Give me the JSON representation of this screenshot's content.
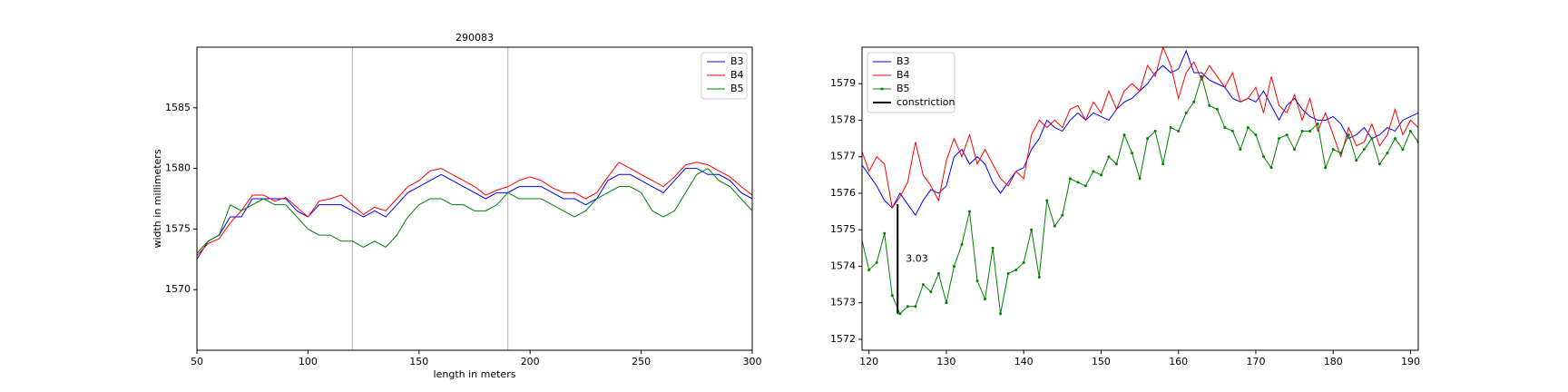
{
  "chart_data": [
    {
      "type": "line",
      "title": "290083",
      "xlabel": "length in meters",
      "ylabel": "width in millimeters",
      "xlim": [
        50,
        300
      ],
      "xticks": [
        50,
        100,
        150,
        200,
        250,
        300
      ],
      "ylim": [
        1565,
        1590
      ],
      "yticks": [
        1570,
        1575,
        1580,
        1585
      ],
      "legend": "upper right",
      "vlines": [
        120,
        190
      ],
      "vline_color": "#b0b0b0",
      "x": [
        50,
        55,
        60,
        65,
        70,
        75,
        80,
        85,
        90,
        95,
        100,
        105,
        110,
        115,
        120,
        125,
        130,
        135,
        140,
        145,
        150,
        155,
        160,
        165,
        170,
        175,
        180,
        185,
        190,
        195,
        200,
        205,
        210,
        215,
        220,
        225,
        230,
        235,
        240,
        245,
        250,
        255,
        260,
        265,
        270,
        275,
        280,
        285,
        290,
        295,
        300
      ],
      "series": [
        {
          "name": "B3",
          "color": "#0000ff",
          "values": [
            1572.5,
            1574,
            1574.5,
            1576,
            1576,
            1577.5,
            1577.5,
            1577.5,
            1577.5,
            1576.5,
            1576,
            1577,
            1577,
            1577,
            1576.5,
            1576,
            1576.5,
            1576,
            1577,
            1578,
            1578.5,
            1579,
            1579.5,
            1579,
            1578.5,
            1578,
            1577.5,
            1578,
            1578,
            1578.5,
            1578.5,
            1578.5,
            1578,
            1577.5,
            1577.5,
            1577,
            1577.5,
            1579,
            1579.5,
            1579.5,
            1579,
            1578.5,
            1578,
            1579,
            1580,
            1580,
            1579.5,
            1579.5,
            1579,
            1578,
            1577.5
          ]
        },
        {
          "name": "B4",
          "color": "#ff0000",
          "values": [
            1572.8,
            1573.8,
            1574.2,
            1575.5,
            1576.5,
            1577.8,
            1577.8,
            1577.3,
            1577.6,
            1576.8,
            1576,
            1577.3,
            1577.5,
            1577.8,
            1577,
            1576.2,
            1576.8,
            1576.5,
            1577.5,
            1578.5,
            1579,
            1579.8,
            1580,
            1579.5,
            1579,
            1578.5,
            1577.8,
            1578.2,
            1578.5,
            1579,
            1579.3,
            1579,
            1578.4,
            1578,
            1578,
            1577.5,
            1578,
            1579.3,
            1580.5,
            1580,
            1579.5,
            1579,
            1578.5,
            1579.3,
            1580.3,
            1580.5,
            1580.3,
            1579.8,
            1579.3,
            1578.5,
            1577.8
          ]
        },
        {
          "name": "B5",
          "color": "#008000",
          "values": [
            1573,
            1574,
            1574.5,
            1577,
            1576.5,
            1577,
            1577.5,
            1577,
            1577,
            1576,
            1575,
            1574.5,
            1574.5,
            1574,
            1574,
            1573.5,
            1574,
            1573.5,
            1574.5,
            1576,
            1577,
            1577.5,
            1577.5,
            1577,
            1577,
            1576.5,
            1576.5,
            1577,
            1578,
            1577.5,
            1577.5,
            1577.5,
            1577,
            1576.5,
            1576,
            1576.5,
            1577.5,
            1578,
            1578.5,
            1578.5,
            1578,
            1576.5,
            1576,
            1576.5,
            1578,
            1579.5,
            1580,
            1579,
            1578.5,
            1577.5,
            1576.5
          ]
        }
      ]
    },
    {
      "type": "line",
      "xlim": [
        119.1,
        191.0
      ],
      "xticks": [
        120,
        130,
        140,
        150,
        160,
        170,
        180,
        190
      ],
      "ylim": [
        1571.7,
        1580.0
      ],
      "yticks": [
        1572,
        1573,
        1574,
        1575,
        1576,
        1577,
        1578,
        1579
      ],
      "legend": "upper left",
      "x": [
        119,
        120,
        121,
        122,
        123,
        124,
        125,
        126,
        127,
        128,
        129,
        130,
        131,
        132,
        133,
        134,
        135,
        136,
        137,
        138,
        139,
        140,
        141,
        142,
        143,
        144,
        145,
        146,
        147,
        148,
        149,
        150,
        151,
        152,
        153,
        154,
        155,
        156,
        157,
        158,
        159,
        160,
        161,
        162,
        163,
        164,
        165,
        166,
        167,
        168,
        169,
        170,
        171,
        172,
        173,
        174,
        175,
        176,
        177,
        178,
        179,
        180,
        181,
        182,
        183,
        184,
        185,
        186,
        187,
        188,
        189,
        190,
        191
      ],
      "series": [
        {
          "name": "B3",
          "color": "#0000ff",
          "values": [
            1576.8,
            1576.5,
            1576.2,
            1575.8,
            1575.6,
            1576,
            1575.7,
            1575.4,
            1575.8,
            1576.1,
            1576,
            1576.2,
            1577,
            1577.2,
            1576.8,
            1577,
            1576.8,
            1576.3,
            1576,
            1576.3,
            1576.6,
            1576.7,
            1577.2,
            1577.5,
            1578,
            1577.8,
            1577.7,
            1578,
            1578.2,
            1578,
            1578.2,
            1578.1,
            1578,
            1578.3,
            1578.5,
            1578.6,
            1578.8,
            1579,
            1579.3,
            1579.5,
            1579.3,
            1579.4,
            1579.9,
            1579.3,
            1579.3,
            1579.1,
            1579,
            1578.9,
            1578.6,
            1578.5,
            1578.6,
            1578.5,
            1578.8,
            1578.4,
            1578,
            1578.4,
            1578.6,
            1578.3,
            1578.1,
            1578,
            1578,
            1578.1,
            1577.9,
            1577.5,
            1577.6,
            1577.8,
            1577.5,
            1577.6,
            1577.8,
            1577.7,
            1578,
            1578.1,
            1578.2
          ]
        },
        {
          "name": "B4",
          "color": "#ff0000",
          "values": [
            1577.2,
            1576.6,
            1577,
            1576.8,
            1575.6,
            1575.9,
            1576.3,
            1577.4,
            1576.5,
            1576.2,
            1575.8,
            1576.9,
            1577.5,
            1577,
            1577.6,
            1576.8,
            1577.2,
            1576.8,
            1576.4,
            1576.2,
            1576.6,
            1576.4,
            1577.6,
            1578,
            1577.8,
            1578,
            1577.8,
            1578.3,
            1578.4,
            1578,
            1578.5,
            1578.2,
            1578.8,
            1578.3,
            1578.8,
            1579,
            1578.8,
            1579.5,
            1579.2,
            1580,
            1579.5,
            1578.6,
            1579.3,
            1579.6,
            1579.1,
            1579.5,
            1579.2,
            1578.9,
            1579.3,
            1578.5,
            1578.6,
            1578.9,
            1578.2,
            1579.2,
            1578.4,
            1578.2,
            1578.7,
            1578,
            1578.6,
            1577.7,
            1578.2,
            1577.6,
            1577,
            1577.8,
            1577.3,
            1577.4,
            1577.9,
            1577.3,
            1577.6,
            1578.3,
            1577.6,
            1578,
            1577.8
          ]
        },
        {
          "name": "B5",
          "color": "#008000",
          "marker": true,
          "values": [
            1574.8,
            1573.9,
            1574.1,
            1574.9,
            1573.2,
            1572.7,
            1572.9,
            1572.9,
            1573.5,
            1573.3,
            1573.8,
            1573,
            1574,
            1574.6,
            1575.5,
            1573.6,
            1573.1,
            1574.5,
            1572.7,
            1573.8,
            1573.9,
            1574.1,
            1575,
            1573.7,
            1575.8,
            1575.1,
            1575.4,
            1576.4,
            1576.3,
            1576.2,
            1576.6,
            1576.5,
            1577,
            1576.8,
            1577.6,
            1577.1,
            1576.4,
            1577.5,
            1577.7,
            1576.8,
            1577.8,
            1577.7,
            1578.2,
            1578.5,
            1579.2,
            1578.4,
            1578.3,
            1577.8,
            1577.7,
            1577.2,
            1577.8,
            1577.6,
            1577,
            1576.7,
            1577.5,
            1577.6,
            1577.2,
            1577.7,
            1577.7,
            1577.9,
            1576.7,
            1577.2,
            1577.1,
            1577.6,
            1576.9,
            1577.2,
            1577.5,
            1576.8,
            1577.1,
            1577.5,
            1577.2,
            1577.7,
            1577.4
          ]
        }
      ],
      "lines": [
        {
          "name": "constriction",
          "color": "#000000",
          "x": [
            123.7,
            123.7
          ],
          "y": [
            1572.7,
            1575.7
          ],
          "label": "3.03"
        }
      ]
    }
  ]
}
